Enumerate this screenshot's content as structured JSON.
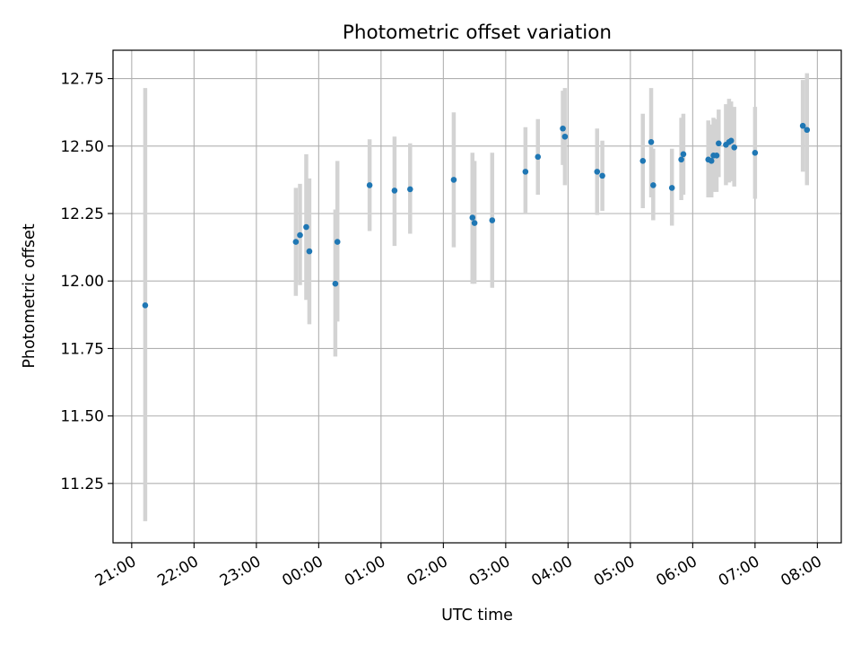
{
  "chart_data": {
    "type": "scatter",
    "title": "Photometric offset variation",
    "xlabel": "UTC time",
    "ylabel": "Photometric offset",
    "x_ticks": [
      "21:00",
      "22:00",
      "23:00",
      "00:00",
      "01:00",
      "02:00",
      "03:00",
      "04:00",
      "05:00",
      "06:00",
      "07:00",
      "08:00"
    ],
    "y_ticks": [
      "11.25",
      "11.50",
      "11.75",
      "12.00",
      "12.25",
      "12.50",
      "12.75"
    ],
    "xlim": [
      "20:42",
      "08:23"
    ],
    "ylim": [
      11.03,
      12.855
    ],
    "grid": true,
    "colors": {
      "marker": "#1f77b4",
      "errorbar": "#d3d3d3",
      "grid": "#b0b0b0"
    },
    "series": [
      {
        "points": [
          {
            "x": "21:13",
            "y": 11.91,
            "lo": 11.11,
            "hi": 12.715
          },
          {
            "x": "23:38",
            "y": 12.145,
            "lo": 11.945,
            "hi": 12.345
          },
          {
            "x": "23:42",
            "y": 12.17,
            "lo": 11.985,
            "hi": 12.36
          },
          {
            "x": "23:48",
            "y": 12.2,
            "lo": 11.93,
            "hi": 12.47
          },
          {
            "x": "23:51",
            "y": 12.11,
            "lo": 11.84,
            "hi": 12.38
          },
          {
            "x": "00:16",
            "y": 11.99,
            "lo": 11.72,
            "hi": 12.265
          },
          {
            "x": "00:18",
            "y": 12.145,
            "lo": 11.85,
            "hi": 12.445
          },
          {
            "x": "00:49",
            "y": 12.355,
            "lo": 12.185,
            "hi": 12.525
          },
          {
            "x": "01:13",
            "y": 12.335,
            "lo": 12.13,
            "hi": 12.535
          },
          {
            "x": "01:28",
            "y": 12.34,
            "lo": 12.175,
            "hi": 12.51
          },
          {
            "x": "02:10",
            "y": 12.375,
            "lo": 12.125,
            "hi": 12.625
          },
          {
            "x": "02:28",
            "y": 12.235,
            "lo": 11.99,
            "hi": 12.475
          },
          {
            "x": "02:30",
            "y": 12.215,
            "lo": 11.99,
            "hi": 12.445
          },
          {
            "x": "02:47",
            "y": 12.225,
            "lo": 11.975,
            "hi": 12.475
          },
          {
            "x": "03:19",
            "y": 12.405,
            "lo": 12.25,
            "hi": 12.57
          },
          {
            "x": "03:31",
            "y": 12.46,
            "lo": 12.32,
            "hi": 12.6
          },
          {
            "x": "03:55",
            "y": 12.565,
            "lo": 12.43,
            "hi": 12.705
          },
          {
            "x": "03:57",
            "y": 12.535,
            "lo": 12.355,
            "hi": 12.715
          },
          {
            "x": "04:28",
            "y": 12.405,
            "lo": 12.245,
            "hi": 12.565
          },
          {
            "x": "04:33",
            "y": 12.39,
            "lo": 12.26,
            "hi": 12.52
          },
          {
            "x": "05:12",
            "y": 12.445,
            "lo": 12.27,
            "hi": 12.62
          },
          {
            "x": "05:20",
            "y": 12.515,
            "lo": 12.31,
            "hi": 12.715
          },
          {
            "x": "05:22",
            "y": 12.355,
            "lo": 12.225,
            "hi": 12.49
          },
          {
            "x": "05:40",
            "y": 12.345,
            "lo": 12.205,
            "hi": 12.49
          },
          {
            "x": "05:49",
            "y": 12.45,
            "lo": 12.3,
            "hi": 12.605
          },
          {
            "x": "05:51",
            "y": 12.47,
            "lo": 12.32,
            "hi": 12.62
          },
          {
            "x": "06:15",
            "y": 12.45,
            "lo": 12.31,
            "hi": 12.595
          },
          {
            "x": "06:18",
            "y": 12.445,
            "lo": 12.31,
            "hi": 12.58
          },
          {
            "x": "06:20",
            "y": 12.465,
            "lo": 12.33,
            "hi": 12.605
          },
          {
            "x": "06:23",
            "y": 12.465,
            "lo": 12.33,
            "hi": 12.6
          },
          {
            "x": "06:25",
            "y": 12.51,
            "lo": 12.385,
            "hi": 12.635
          },
          {
            "x": "06:32",
            "y": 12.505,
            "lo": 12.355,
            "hi": 12.655
          },
          {
            "x": "06:35",
            "y": 12.515,
            "lo": 12.365,
            "hi": 12.675
          },
          {
            "x": "06:37",
            "y": 12.52,
            "lo": 12.37,
            "hi": 12.665
          },
          {
            "x": "06:40",
            "y": 12.495,
            "lo": 12.35,
            "hi": 12.645
          },
          {
            "x": "07:00",
            "y": 12.475,
            "lo": 12.305,
            "hi": 12.645
          },
          {
            "x": "07:46",
            "y": 12.575,
            "lo": 12.405,
            "hi": 12.745
          },
          {
            "x": "07:50",
            "y": 12.56,
            "lo": 12.355,
            "hi": 12.77
          }
        ]
      }
    ]
  }
}
